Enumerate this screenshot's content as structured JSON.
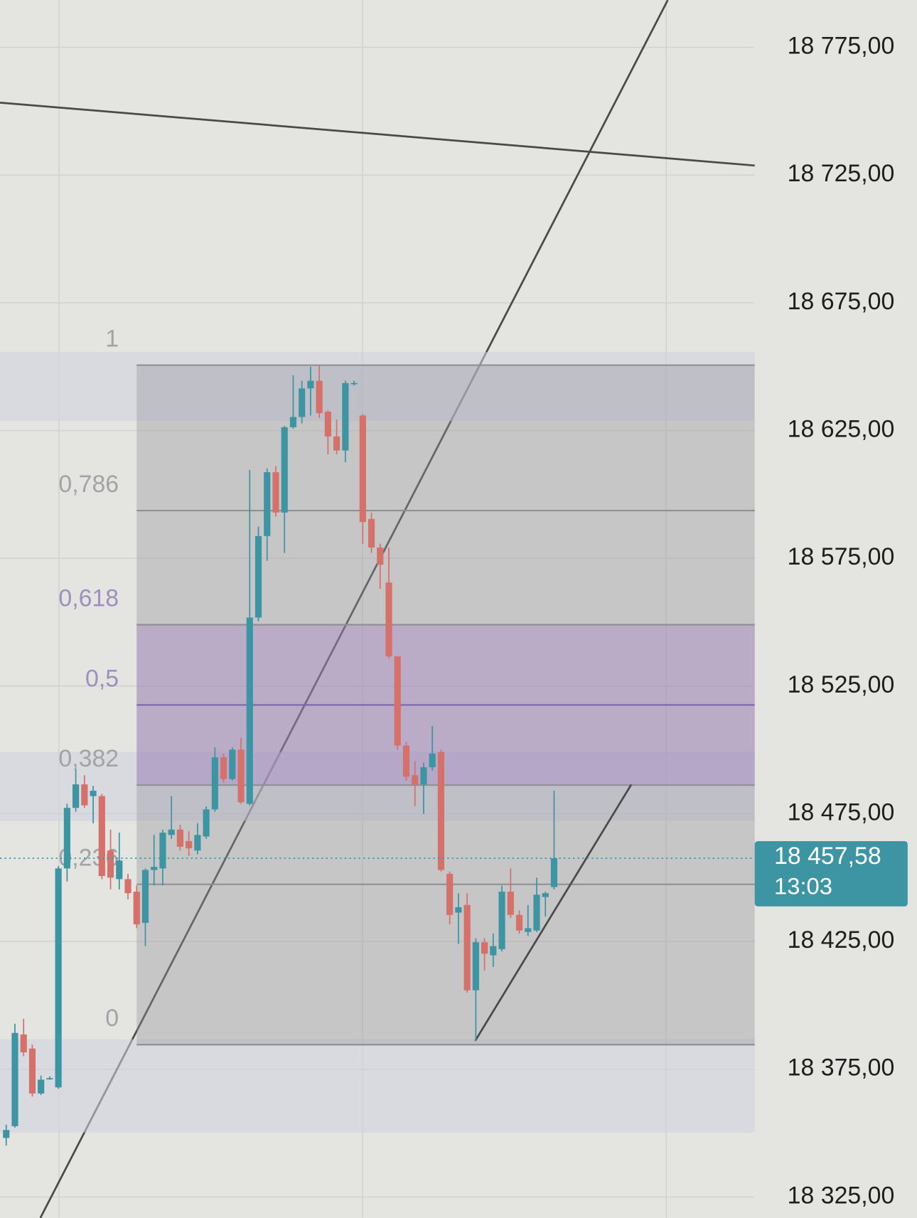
{
  "chart_data": {
    "type": "candlestick",
    "categories": [
      null,
      null,
      null,
      null,
      null,
      null,
      null,
      null,
      null,
      null,
      null,
      null,
      null,
      null,
      null,
      null,
      null,
      null,
      null,
      null,
      null,
      null,
      null,
      null,
      null,
      null,
      null,
      null,
      null,
      null,
      null,
      null,
      null,
      null,
      null,
      null,
      null,
      null,
      null,
      null,
      null,
      null,
      null,
      null,
      null,
      null,
      null,
      null,
      null,
      null,
      null,
      null,
      null,
      null,
      null,
      null,
      null,
      null,
      null,
      null,
      null,
      null,
      null,
      null
    ],
    "open": [
      18348.1,
      18352.7,
      18388.6,
      18383.1,
      18365.5,
      18371.5,
      18367.9,
      18453.6,
      18477.3,
      18486.5,
      18481.9,
      18481.9,
      18460.6,
      18449.4,
      18449.4,
      18444.5,
      18432.3,
      18453.0,
      18453.6,
      18466.7,
      18468.8,
      18464.3,
      18460.6,
      18466.1,
      18476.7,
      18497.1,
      18488.6,
      18500.1,
      18478.9,
      18551.8,
      18583.7,
      18608.7,
      18592.9,
      18626.3,
      18630.3,
      18641.5,
      18644.5,
      18632.4,
      18622.7,
      18617.2,
      18643.6,
      18630.9,
      18590.4,
      18579.2,
      18565.5,
      18536.6,
      18501.7,
      18490.1,
      18486.5,
      18493.2,
      18499.2,
      18451.5,
      18436.3,
      18439.3,
      18405.9,
      18424.7,
      18419.6,
      18422.0,
      18444.5,
      18435.4,
      18428.7,
      18429.3,
      18442.4,
      18446.3
    ],
    "high": [
      18353.3,
      18392.8,
      18394.7,
      18384.6,
      18372.5,
      18372.2,
      18454.5,
      18478.9,
      18492.5,
      18490.1,
      18485.9,
      18482.8,
      18468.8,
      18467.6,
      18451.5,
      18446.9,
      18453.6,
      18466.7,
      18468.8,
      18481.9,
      18470.7,
      18468.2,
      18471.3,
      18477.9,
      18501.0,
      18498.6,
      18501.0,
      18504.7,
      18609.6,
      18587.4,
      18610.2,
      18611.1,
      18626.9,
      18646.7,
      18644.5,
      18650.0,
      18650.6,
      18633.0,
      18629.3,
      18644.5,
      18644.5,
      18631.5,
      18592.9,
      18580.7,
      18579.2,
      18536.6,
      18503.2,
      18495.6,
      18495.0,
      18509.3,
      18500.1,
      18452.4,
      18443.9,
      18443.9,
      18426.3,
      18426.3,
      18428.1,
      18446.9,
      18453.6,
      18437.2,
      18439.3,
      18450.0,
      18444.5,
      18484.0
    ],
    "low": [
      18345.1,
      18352.1,
      18380.1,
      18364.3,
      18364.9,
      18370.9,
      18367.3,
      18448.5,
      18475.8,
      18477.3,
      18471.3,
      18449.4,
      18445.4,
      18445.4,
      18441.5,
      18430.2,
      18423.2,
      18446.9,
      18446.9,
      18465.2,
      18460.6,
      18458.5,
      18459.1,
      18465.2,
      18475.8,
      18487.1,
      18488.0,
      18478.9,
      18478.3,
      18550.3,
      18574.0,
      18591.3,
      18577.1,
      18625.7,
      18627.8,
      18630.9,
      18630.0,
      18615.7,
      18615.7,
      18612.6,
      18642.7,
      18580.7,
      18577.1,
      18563.1,
      18535.7,
      18500.1,
      18488.0,
      18477.9,
      18474.9,
      18491.9,
      18452.4,
      18431.7,
      18424.1,
      18405.0,
      18386.1,
      18413.5,
      18415.0,
      18421.1,
      18434.2,
      18428.1,
      18427.2,
      18428.7,
      18434.8,
      18445.4
    ],
    "close": [
      18351.2,
      18389.2,
      18381.6,
      18365.5,
      18370.9,
      18371.5,
      18453.6,
      18477.3,
      18486.5,
      18478.3,
      18484.0,
      18450.6,
      18450.0,
      18456.7,
      18443.9,
      18431.7,
      18453.0,
      18454.2,
      18467.6,
      18468.8,
      18462.1,
      18461.5,
      18466.7,
      18476.7,
      18497.1,
      18488.6,
      18500.1,
      18479.5,
      18551.8,
      18583.7,
      18608.7,
      18592.9,
      18626.3,
      18630.3,
      18641.5,
      18644.5,
      18631.8,
      18622.7,
      18617.2,
      18643.6,
      18643.6,
      18589.2,
      18579.2,
      18572.5,
      18536.6,
      18501.7,
      18489.5,
      18486.5,
      18493.2,
      18498.6,
      18453.0,
      18435.4,
      18438.4,
      18405.9,
      18424.7,
      18420.2,
      18423.2,
      18444.5,
      18435.4,
      18429.3,
      18430.2,
      18443.3,
      18443.9,
      18457.58
    ],
    "up_color": "#3d95a3",
    "down_color": "#d5706b",
    "ylim": [
      18316.8,
      18793.5
    ],
    "yticks": [
      {
        "value": 18775,
        "label": "18 775,00"
      },
      {
        "value": 18725,
        "label": "18 725,00"
      },
      {
        "value": 18675,
        "label": "18 675,00"
      },
      {
        "value": 18625,
        "label": "18 625,00"
      },
      {
        "value": 18575,
        "label": "18 575,00"
      },
      {
        "value": 18525,
        "label": "18 525,00"
      },
      {
        "value": 18475,
        "label": "18 475,00"
      },
      {
        "value": 18425,
        "label": "18 425,00"
      },
      {
        "value": 18375,
        "label": "18 375,00"
      },
      {
        "value": 18325,
        "label": "18 325,00"
      }
    ],
    "grid": true,
    "last_price": {
      "value": 18457.58,
      "label": "18 457,58"
    },
    "countdown": "13:03",
    "fibonacci": {
      "low": 18384.6,
      "high": 18650.6,
      "levels": [
        {
          "value": 1,
          "label": "1",
          "color": "#a3a3a6"
        },
        {
          "value": 0.786,
          "label": "0,786",
          "color": "#a3a3a6"
        },
        {
          "value": 0.618,
          "label": "0,618",
          "color": "#9f8fbf"
        },
        {
          "value": 0.5,
          "label": "0,5",
          "color": "#9f8fbf"
        },
        {
          "value": 0.382,
          "label": "0,382",
          "color": "#a3a3a6"
        },
        {
          "value": 0.236,
          "label": "0,236",
          "color": "#a3a3a6"
        },
        {
          "value": 0,
          "label": "0",
          "color": "#a3a3a6"
        }
      ]
    }
  }
}
